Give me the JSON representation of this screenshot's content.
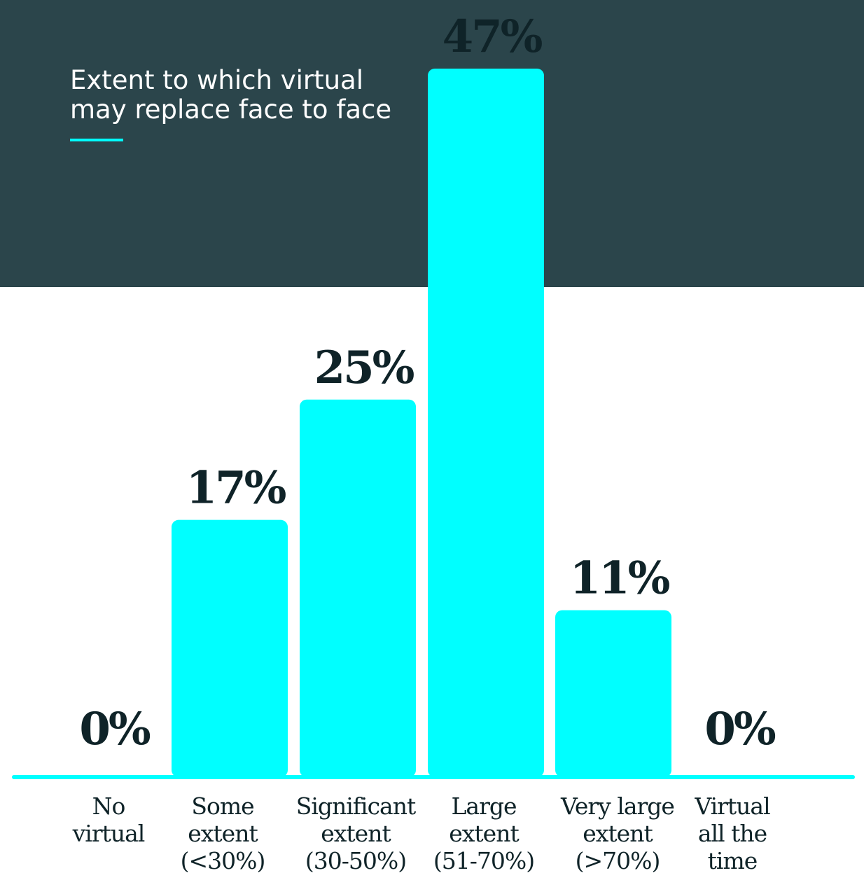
{
  "title": "Extent to which virtual may replace face to face",
  "colors": {
    "band": "#2b454b",
    "bar": "#00ffff",
    "text_dark": "#0f2328",
    "title_text": "#ffffff"
  },
  "chart_data": {
    "type": "bar",
    "title": "Extent to which virtual may replace face to face",
    "xlabel": "",
    "ylabel": "",
    "categories": [
      [
        "No",
        "virtual"
      ],
      [
        "Some",
        "extent",
        "(<30%)"
      ],
      [
        "Significant",
        "extent",
        "(30-50%)"
      ],
      [
        "Large",
        "extent",
        "(51-70%)"
      ],
      [
        "Very large",
        "extent",
        "(>70%)"
      ],
      [
        "Virtual",
        "all the",
        "time"
      ]
    ],
    "values": [
      0,
      17,
      25,
      47,
      11,
      0
    ],
    "value_labels": [
      "0%",
      "17%",
      "25%",
      "47%",
      "11%",
      "0%"
    ],
    "ylim": [
      0,
      47
    ],
    "grid": false,
    "legend": "none"
  }
}
